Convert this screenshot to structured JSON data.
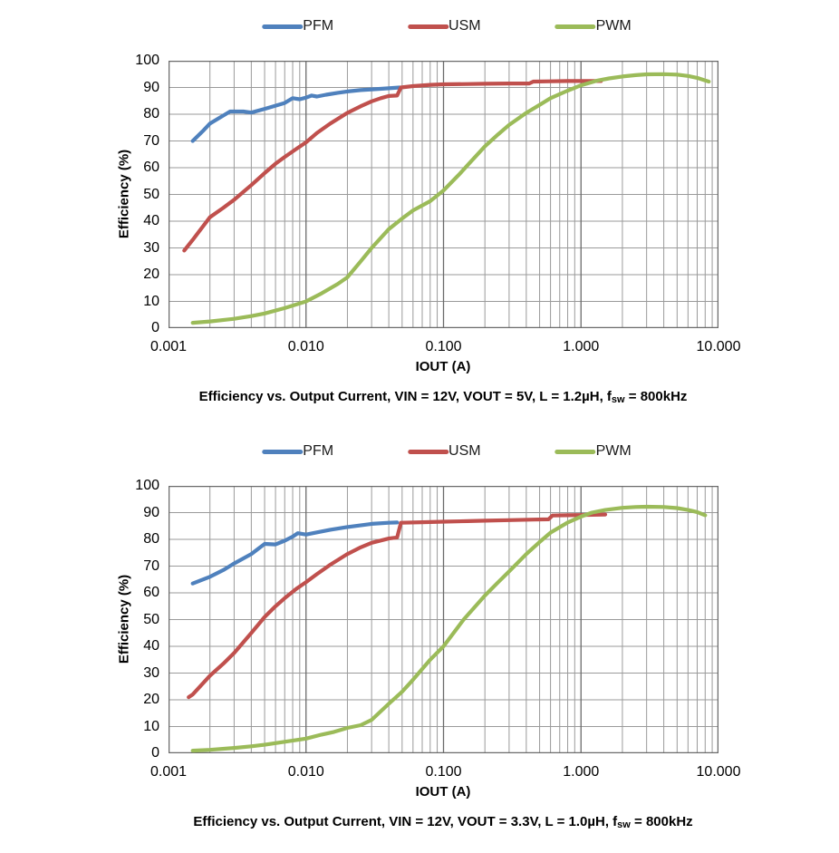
{
  "page": {
    "background": "#ffffff"
  },
  "colors": {
    "pfm": "#4F81BD",
    "usm": "#C0504D",
    "pwm": "#9BBB59",
    "grid_minor": "#9a9a9a",
    "grid_major": "#6a6a6a",
    "plot_border": "#6a6a6a",
    "text": "#000000"
  },
  "chart_data": [
    {
      "type": "line",
      "xscale": "log",
      "xlabel": "IOUT (A)",
      "ylabel": "Efficiency (%)",
      "xlim": [
        0.001,
        10
      ],
      "ylim": [
        0,
        100
      ],
      "grid": true,
      "legend_position": "top",
      "xticks": [
        "0.001",
        "0.010",
        "0.100",
        "1.000",
        "10.000"
      ],
      "yticks": [
        "100",
        "90",
        "80",
        "70",
        "60",
        "50",
        "40",
        "30",
        "20",
        "10",
        "0"
      ],
      "caption": {
        "prefix": "Efficiency vs. Output Current, VIN = 12V, VOUT = 5V, L = 1.2µH, f",
        "sub": "sw",
        "suffix": " = 800kHz"
      },
      "series": [
        {
          "name": "PFM",
          "color": "#4F81BD",
          "points": [
            [
              0.0015,
              70
            ],
            [
              0.0018,
              74
            ],
            [
              0.002,
              76.5
            ],
            [
              0.0025,
              79.5
            ],
            [
              0.0028,
              81
            ],
            [
              0.0035,
              81
            ],
            [
              0.004,
              80.6
            ],
            [
              0.005,
              82
            ],
            [
              0.006,
              83.2
            ],
            [
              0.007,
              84.2
            ],
            [
              0.008,
              86
            ],
            [
              0.009,
              85.6
            ],
            [
              0.01,
              86.2
            ],
            [
              0.011,
              87
            ],
            [
              0.012,
              86.6
            ],
            [
              0.014,
              87.3
            ],
            [
              0.017,
              88
            ],
            [
              0.02,
              88.5
            ],
            [
              0.025,
              89
            ],
            [
              0.03,
              89.3
            ],
            [
              0.04,
              89.7
            ],
            [
              0.048,
              90
            ]
          ]
        },
        {
          "name": "USM",
          "color": "#C0504D",
          "points": [
            [
              0.0013,
              29
            ],
            [
              0.0015,
              33
            ],
            [
              0.002,
              41.5
            ],
            [
              0.0025,
              45
            ],
            [
              0.003,
              48
            ],
            [
              0.004,
              53.5
            ],
            [
              0.005,
              58
            ],
            [
              0.006,
              61.5
            ],
            [
              0.007,
              64
            ],
            [
              0.0085,
              67
            ],
            [
              0.01,
              69.5
            ],
            [
              0.012,
              73
            ],
            [
              0.015,
              76.5
            ],
            [
              0.02,
              80.5
            ],
            [
              0.025,
              83
            ],
            [
              0.03,
              84.8
            ],
            [
              0.035,
              86
            ],
            [
              0.04,
              86.8
            ],
            [
              0.046,
              87
            ],
            [
              0.049,
              90
            ],
            [
              0.06,
              90.5
            ],
            [
              0.08,
              91
            ],
            [
              0.1,
              91.2
            ],
            [
              0.15,
              91.3
            ],
            [
              0.2,
              91.4
            ],
            [
              0.3,
              91.5
            ],
            [
              0.42,
              91.5
            ],
            [
              0.45,
              92.2
            ],
            [
              0.6,
              92.3
            ],
            [
              0.8,
              92.4
            ],
            [
              1.0,
              92.4
            ],
            [
              1.4,
              92.4
            ]
          ]
        },
        {
          "name": "PWM",
          "color": "#9BBB59",
          "points": [
            [
              0.0015,
              2
            ],
            [
              0.002,
              2.5
            ],
            [
              0.003,
              3.5
            ],
            [
              0.004,
              4.5
            ],
            [
              0.005,
              5.5
            ],
            [
              0.007,
              7.5
            ],
            [
              0.01,
              10
            ],
            [
              0.013,
              13
            ],
            [
              0.017,
              16.5
            ],
            [
              0.02,
              19
            ],
            [
              0.025,
              25
            ],
            [
              0.03,
              30
            ],
            [
              0.04,
              37
            ],
            [
              0.05,
              41
            ],
            [
              0.06,
              44
            ],
            [
              0.08,
              47.5
            ],
            [
              0.1,
              51.5
            ],
            [
              0.13,
              57.5
            ],
            [
              0.15,
              61
            ],
            [
              0.2,
              68
            ],
            [
              0.25,
              72.5
            ],
            [
              0.3,
              76
            ],
            [
              0.4,
              80.5
            ],
            [
              0.5,
              83.5
            ],
            [
              0.6,
              86
            ],
            [
              0.8,
              88.8
            ],
            [
              1.0,
              90.8
            ],
            [
              1.3,
              92.5
            ],
            [
              1.6,
              93.4
            ],
            [
              2.0,
              94.1
            ],
            [
              2.5,
              94.6
            ],
            [
              3.0,
              94.9
            ],
            [
              4.0,
              95
            ],
            [
              5.0,
              94.8
            ],
            [
              6.0,
              94.3
            ],
            [
              7.0,
              93.6
            ],
            [
              8.0,
              92.6
            ],
            [
              8.5,
              92.2
            ]
          ]
        }
      ]
    },
    {
      "type": "line",
      "xscale": "log",
      "xlabel": "IOUT (A)",
      "ylabel": "Efficiency (%)",
      "xlim": [
        0.001,
        10
      ],
      "ylim": [
        0,
        100
      ],
      "grid": true,
      "legend_position": "top",
      "xticks": [
        "0.001",
        "0.010",
        "0.100",
        "1.000",
        "10.000"
      ],
      "yticks": [
        "100",
        "90",
        "80",
        "70",
        "60",
        "50",
        "40",
        "30",
        "20",
        "10",
        "0"
      ],
      "caption": {
        "prefix": "Efficiency vs. Output Current, VIN = 12V, VOUT = 3.3V, L = 1.0µH, f",
        "sub": "sw",
        "suffix": " = 800kHz"
      },
      "series": [
        {
          "name": "PFM",
          "color": "#4F81BD",
          "points": [
            [
              0.0015,
              63.5
            ],
            [
              0.002,
              66
            ],
            [
              0.0025,
              68.5
            ],
            [
              0.003,
              71
            ],
            [
              0.004,
              74.5
            ],
            [
              0.0045,
              76.5
            ],
            [
              0.005,
              78.3
            ],
            [
              0.006,
              78.1
            ],
            [
              0.007,
              79.5
            ],
            [
              0.008,
              81
            ],
            [
              0.0087,
              82.3
            ],
            [
              0.01,
              81.8
            ],
            [
              0.012,
              82.6
            ],
            [
              0.015,
              83.6
            ],
            [
              0.02,
              84.6
            ],
            [
              0.03,
              85.8
            ],
            [
              0.04,
              86.2
            ],
            [
              0.046,
              86.3
            ]
          ]
        },
        {
          "name": "USM",
          "color": "#C0504D",
          "points": [
            [
              0.0014,
              21
            ],
            [
              0.0015,
              22
            ],
            [
              0.002,
              29
            ],
            [
              0.0025,
              33.5
            ],
            [
              0.003,
              37.5
            ],
            [
              0.004,
              45
            ],
            [
              0.005,
              51
            ],
            [
              0.006,
              55
            ],
            [
              0.007,
              58
            ],
            [
              0.0085,
              61.5
            ],
            [
              0.01,
              64
            ],
            [
              0.012,
              67
            ],
            [
              0.015,
              70.5
            ],
            [
              0.02,
              74.5
            ],
            [
              0.025,
              77
            ],
            [
              0.03,
              78.7
            ],
            [
              0.04,
              80.3
            ],
            [
              0.046,
              80.7
            ],
            [
              0.049,
              86.2
            ],
            [
              0.07,
              86.4
            ],
            [
              0.1,
              86.6
            ],
            [
              0.15,
              86.8
            ],
            [
              0.2,
              87
            ],
            [
              0.3,
              87.2
            ],
            [
              0.45,
              87.4
            ],
            [
              0.58,
              87.5
            ],
            [
              0.62,
              88.9
            ],
            [
              0.8,
              89
            ],
            [
              1.0,
              89.1
            ],
            [
              1.5,
              89.3
            ]
          ]
        },
        {
          "name": "PWM",
          "color": "#9BBB59",
          "points": [
            [
              0.0015,
              1
            ],
            [
              0.002,
              1.3
            ],
            [
              0.003,
              2
            ],
            [
              0.004,
              2.6
            ],
            [
              0.005,
              3.2
            ],
            [
              0.007,
              4.3
            ],
            [
              0.01,
              5.5
            ],
            [
              0.013,
              7
            ],
            [
              0.016,
              8
            ],
            [
              0.02,
              9.5
            ],
            [
              0.025,
              10.5
            ],
            [
              0.03,
              12.5
            ],
            [
              0.04,
              18.5
            ],
            [
              0.05,
              23
            ],
            [
              0.06,
              27.5
            ],
            [
              0.08,
              35
            ],
            [
              0.1,
              40
            ],
            [
              0.14,
              50
            ],
            [
              0.2,
              59
            ],
            [
              0.25,
              64
            ],
            [
              0.3,
              68
            ],
            [
              0.4,
              74.5
            ],
            [
              0.5,
              79
            ],
            [
              0.6,
              82.5
            ],
            [
              0.8,
              86.3
            ],
            [
              1.0,
              88.5
            ],
            [
              1.2,
              90
            ],
            [
              1.5,
              91
            ],
            [
              2.0,
              91.8
            ],
            [
              2.5,
              92.1
            ],
            [
              3.0,
              92.2
            ],
            [
              4.0,
              92.1
            ],
            [
              5.0,
              91.7
            ],
            [
              6.0,
              91
            ],
            [
              7.0,
              90.2
            ],
            [
              8.0,
              89
            ]
          ]
        }
      ]
    }
  ]
}
